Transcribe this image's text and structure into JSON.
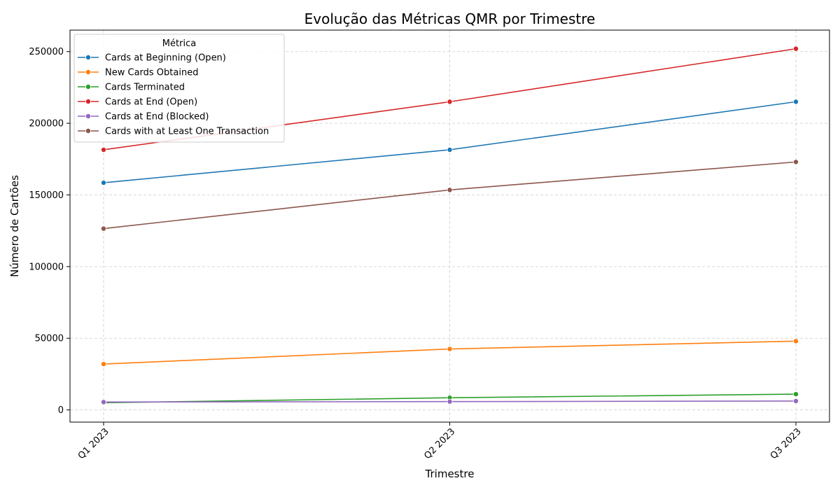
{
  "chart_data": {
    "type": "line",
    "title": "Evolução das Métricas QMR por Trimestre",
    "xlabel": "Trimestre",
    "ylabel": "Número de Cartões",
    "categories": [
      "Q1 2023",
      "Q2 2023",
      "Q3 2023"
    ],
    "ylim": [
      -8500,
      265000
    ],
    "yticks": [
      0,
      50000,
      100000,
      150000,
      200000,
      250000
    ],
    "grid": true,
    "legend": {
      "title": "Métrica",
      "placement": "top-left"
    },
    "series": [
      {
        "name": "Cards at Beginning (Open)",
        "color": "#1f77b4",
        "values": [
          158500,
          181500,
          215000
        ]
      },
      {
        "name": "New Cards Obtained",
        "color": "#ff7f0e",
        "values": [
          32000,
          42500,
          48000
        ]
      },
      {
        "name": "Cards Terminated",
        "color": "#2ca02c",
        "values": [
          5000,
          8500,
          11000
        ]
      },
      {
        "name": "Cards at End (Open)",
        "color": "#d62728",
        "values": [
          181500,
          215000,
          252000
        ]
      },
      {
        "name": "Cards at End (Blocked)",
        "color": "#9467bd",
        "values": [
          5500,
          5800,
          6200
        ]
      },
      {
        "name": "Cards with at Least One Transaction",
        "color": "#8c564b",
        "values": [
          126500,
          153500,
          173000
        ]
      }
    ]
  }
}
